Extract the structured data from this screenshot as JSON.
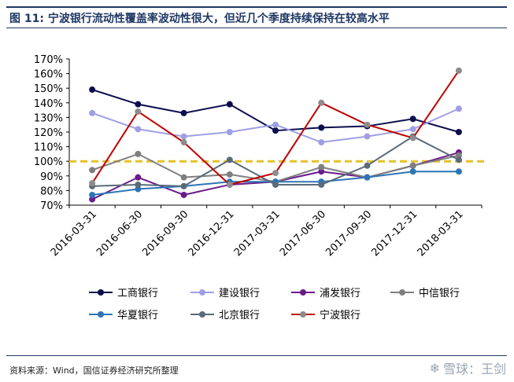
{
  "header": {
    "title": "图 11: 宁波银行流动性覆盖率波动性很大，但近几个季度持续保持在较高水平"
  },
  "footer": {
    "source": "资料来源：Wind，国信证券经济研究所整理",
    "watermark": "雪球：王剑",
    "watermark_icon": "snowball-icon"
  },
  "chart_data": {
    "type": "line",
    "categories": [
      "2016-03-31",
      "2016-06-30",
      "2016-09-30",
      "2016-12-31",
      "2017-03-31",
      "2017-06-30",
      "2017-09-30",
      "2017-12-31",
      "2018-03-31"
    ],
    "ylim": [
      0.7,
      1.7
    ],
    "yticks": [
      "70%",
      "80%",
      "90%",
      "100%",
      "110%",
      "120%",
      "130%",
      "140%",
      "150%",
      "160%",
      "170%"
    ],
    "reference_line": {
      "value": 1.0,
      "color": "#e6c229",
      "style": "dashed"
    },
    "series": [
      {
        "name": "工商银行",
        "color": "#0d0d4d",
        "values": [
          1.49,
          1.39,
          1.33,
          1.39,
          1.21,
          1.23,
          1.24,
          1.29,
          1.2
        ]
      },
      {
        "name": "建设银行",
        "color": "#9f9fe6",
        "values": [
          1.33,
          1.22,
          1.17,
          1.2,
          1.25,
          1.13,
          1.17,
          1.22,
          1.36
        ]
      },
      {
        "name": "浦发银行",
        "color": "#6a1b8a",
        "values": [
          0.74,
          0.89,
          0.77,
          0.84,
          0.86,
          0.93,
          0.89,
          0.97,
          1.06
        ]
      },
      {
        "name": "中信银行",
        "color": "#7f7f7f",
        "values": [
          0.94,
          1.05,
          0.89,
          0.91,
          0.86,
          0.96,
          0.89,
          0.97,
          1.04
        ]
      },
      {
        "name": "华夏银行",
        "color": "#2e75b6",
        "values": [
          0.77,
          0.81,
          0.83,
          0.86,
          0.86,
          0.86,
          0.89,
          0.93,
          0.93
        ]
      },
      {
        "name": "北京银行",
        "color": "#5b6b7a",
        "values": [
          0.83,
          0.84,
          0.83,
          1.01,
          0.84,
          0.84,
          0.97,
          1.17,
          1.01
        ]
      },
      {
        "name": "宁波银行",
        "color": "#c00000",
        "marker_color": "#8c8c8c",
        "values": [
          0.85,
          1.34,
          1.13,
          0.84,
          0.92,
          1.4,
          1.25,
          1.16,
          1.62
        ]
      }
    ]
  }
}
